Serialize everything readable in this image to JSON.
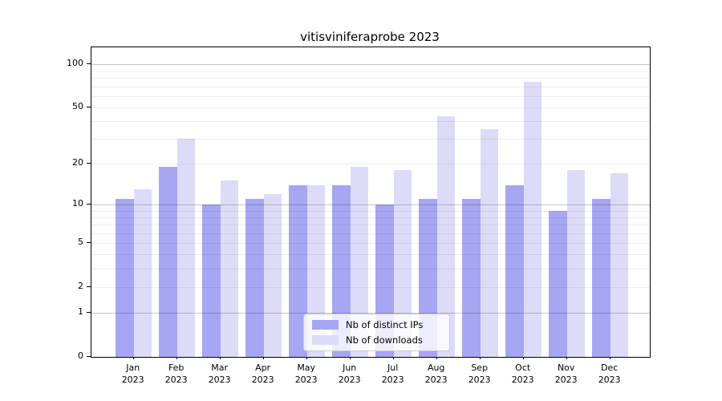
{
  "title": "vitisviniferaprobe 2023",
  "chart_data": {
    "type": "bar",
    "title": "vitisviniferaprobe 2023",
    "categories": [
      "Jan",
      "Feb",
      "Mar",
      "Apr",
      "May",
      "Jun",
      "Jul",
      "Aug",
      "Sep",
      "Oct",
      "Nov",
      "Dec"
    ],
    "year_label": "2023",
    "series": [
      {
        "name": "Nb of distinct IPs",
        "color": "#a6a6f2",
        "values": [
          11,
          19,
          10,
          11,
          14,
          14,
          10,
          11,
          11,
          14,
          9,
          11
        ]
      },
      {
        "name": "Nb of downloads",
        "color": "#dcdcf9",
        "values": [
          13,
          30,
          15,
          12,
          14,
          19,
          18,
          43,
          35,
          75,
          18,
          17
        ]
      }
    ],
    "xlabel": "",
    "ylabel": "",
    "yscale": "log1p",
    "ylim": [
      0,
      130
    ],
    "ytick_values": [
      0,
      1,
      2,
      5,
      10,
      20,
      50,
      100
    ],
    "major_gridlines": [
      1,
      10,
      100
    ],
    "minor_gridlines": [
      2,
      3,
      4,
      5,
      6,
      7,
      8,
      9,
      20,
      30,
      40,
      50,
      60,
      70,
      80,
      90
    ],
    "grid": "on",
    "legend_position": "lower center inside plot"
  },
  "legend": {
    "items": [
      {
        "label": "Nb of distinct IPs",
        "color": "#a6a6f2"
      },
      {
        "label": "Nb of downloads",
        "color": "#dcdcf9"
      }
    ]
  }
}
